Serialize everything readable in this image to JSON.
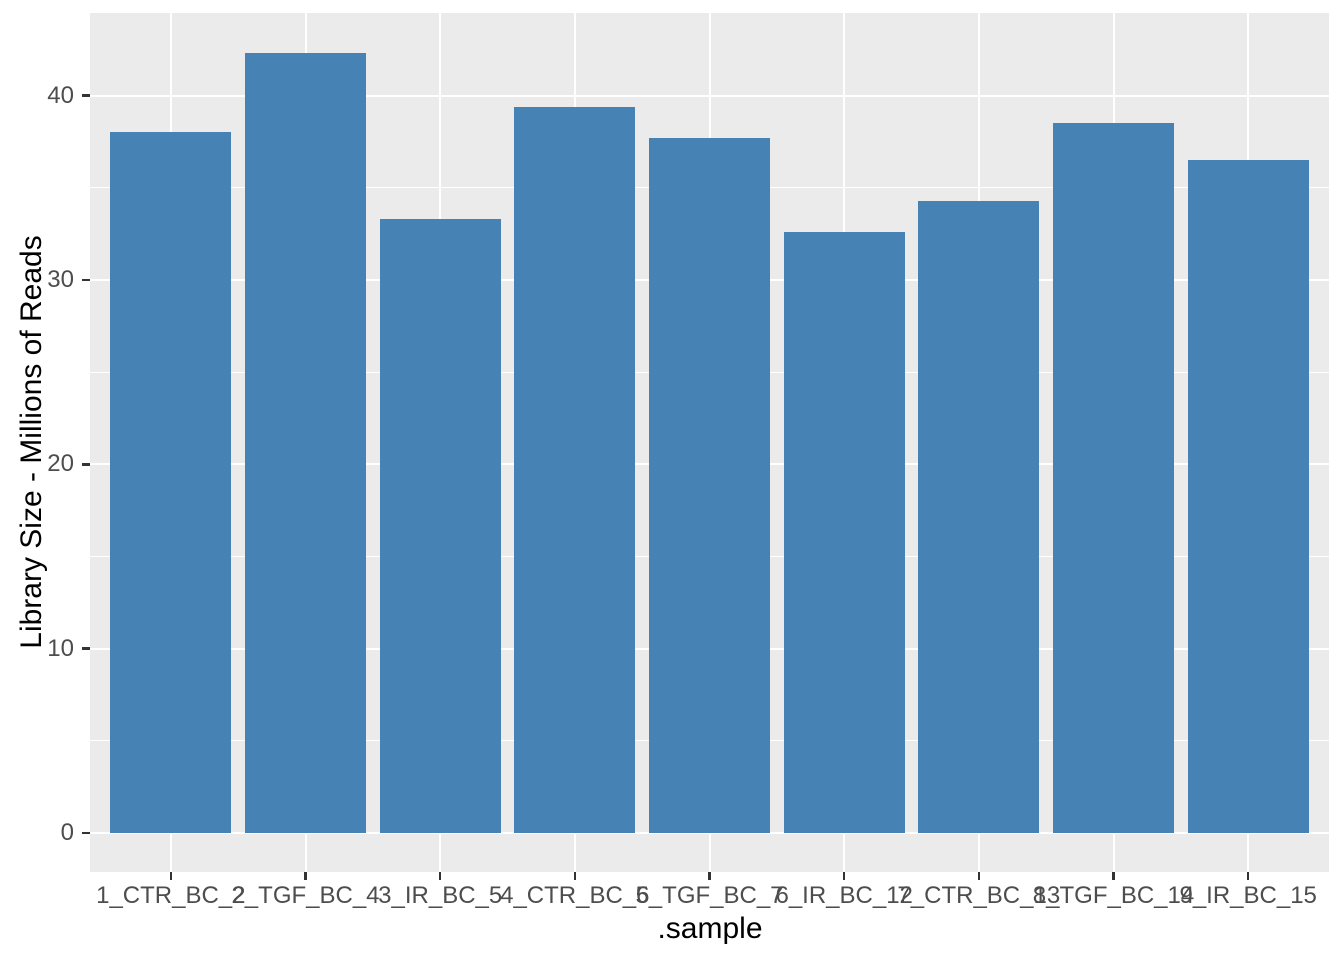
{
  "chart_data": {
    "type": "bar",
    "categories": [
      "1_CTR_BC_2",
      "2_TGF_BC_4",
      "3_IR_BC_5",
      "4_CTR_BC_6",
      "5_TGF_BC_7",
      "6_IR_BC_12",
      "7_CTR_BC_13",
      "8_TGF_BC_14",
      "9_IR_BC_15"
    ],
    "values": [
      38.0,
      42.3,
      33.3,
      39.4,
      37.7,
      32.6,
      34.3,
      38.5,
      36.5
    ],
    "xlabel": ".sample",
    "ylabel": "Library Size - Millions of Reads",
    "yticks": [
      0,
      10,
      20,
      30,
      40
    ],
    "minor_yticks": [
      5,
      15,
      25,
      35
    ],
    "ylim": [
      -2.1,
      44.5
    ],
    "grid": "horizontal major+minor, vertical major at category centers",
    "legend": "none",
    "colors": {
      "bar_fill": "#4682B4",
      "panel_background": "#EBEBEB",
      "gridline": "#FFFFFF",
      "tick_label": "#4D4D4D",
      "axis_title": "#000000",
      "tick_mark": "#333333",
      "figure_background": "#FFFFFF"
    }
  }
}
